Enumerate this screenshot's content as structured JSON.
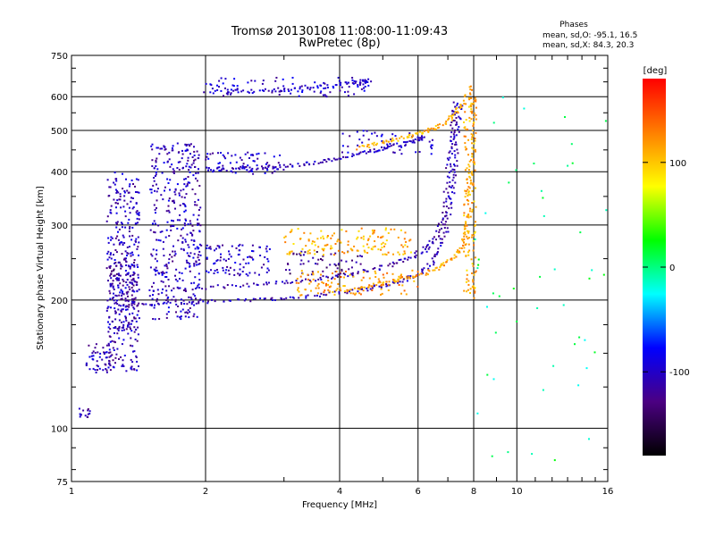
{
  "chart_data": {
    "type": "scatter",
    "title": "Tromsø 20130108 11:08:00-11:09:43",
    "subtitle": "RwPretec (8p)",
    "stats": {
      "heading": "Phases",
      "o_line": "mean, sd,O: -95.1, 16.5",
      "x_line": "mean, sd,X:  84.3, 20.3"
    },
    "xlabel": "Frequency [MHz]",
    "ylabel": "Stationary phase Virtual Height [km]",
    "x_scale": "log",
    "y_scale": "log",
    "xlim": [
      1,
      16
    ],
    "ylim": [
      75,
      750
    ],
    "x_ticks": [
      1,
      2,
      4,
      6,
      8,
      10,
      16
    ],
    "x_tick_labels": [
      "1",
      "2",
      "4",
      "6",
      "8",
      "10",
      "16"
    ],
    "y_ticks": [
      75,
      100,
      200,
      300,
      400,
      500,
      600,
      750
    ],
    "y_tick_labels": [
      "75",
      "100",
      "200",
      "300",
      "400",
      "500",
      "600",
      "750"
    ],
    "grid": true,
    "colorbar": {
      "label": "[deg]",
      "range": [
        -180,
        180
      ],
      "ticks": [
        100,
        0,
        -100
      ],
      "tick_labels": [
        "100",
        "0",
        "-100"
      ],
      "colors": [
        "#000000",
        "#4b0082",
        "#0000ff",
        "#00ffff",
        "#00ff00",
        "#ffff00",
        "#ff7f00",
        "#ff0000"
      ]
    },
    "series": [
      {
        "freq_range": [
          1.03,
          1.1
        ],
        "height_range": [
          105,
          112
        ],
        "phase": -110,
        "count": 14
      },
      {
        "freq_range": [
          1.08,
          1.25
        ],
        "height_range": [
          135,
          158
        ],
        "phase": -108,
        "count": 50
      },
      {
        "freq_range": [
          1.2,
          1.42
        ],
        "height_range": [
          135,
          400
        ],
        "phase": -105,
        "count": 320
      },
      {
        "freq_range": [
          1.22,
          1.42
        ],
        "height_range": [
          170,
          250
        ],
        "phase": -115,
        "count": 120
      },
      {
        "freq_range": [
          1.5,
          1.95
        ],
        "height_range": [
          180,
          470
        ],
        "phase": -105,
        "count": 380
      },
      {
        "freq_range": [
          1.8,
          2.8
        ],
        "height_range": [
          228,
          270
        ],
        "phase": -100,
        "count": 110
      },
      {
        "freq_range": [
          2.0,
          3.0
        ],
        "height_range": [
          395,
          445
        ],
        "phase": -100,
        "count": 80
      },
      {
        "freq_range": [
          2.0,
          4.7
        ],
        "height_range": [
          600,
          665
        ],
        "phase": -100,
        "count": 90
      },
      {
        "freq_range": [
          3.0,
          4.5
        ],
        "height_range": [
          225,
          260
        ],
        "phase": -125,
        "count": 60
      },
      {
        "freq_range": [
          3.0,
          5.8
        ],
        "height_range": [
          255,
          295
        ],
        "phase": 110,
        "count": 140
      },
      {
        "freq_range": [
          3.2,
          6.0
        ],
        "height_range": [
          205,
          235
        ],
        "phase": 120,
        "count": 110
      },
      {
        "freq_range": [
          4.0,
          6.6
        ],
        "height_range": [
          440,
          500
        ],
        "phase": -100,
        "count": 50
      },
      {
        "freq_range": [
          7.6,
          8.1
        ],
        "height_range": [
          200,
          620
        ],
        "phase": 110,
        "count": 140
      },
      {
        "freq_range": [
          8.0,
          16
        ],
        "height_range": [
          80,
          650
        ],
        "phase": 0,
        "count": 50
      }
    ],
    "traces": [
      {
        "points": [
          [
            1.2,
            192
          ],
          [
            1.5,
            196
          ],
          [
            2.0,
            198
          ],
          [
            2.6,
            200
          ],
          [
            3.2,
            203
          ],
          [
            4.0,
            208
          ],
          [
            4.8,
            214
          ],
          [
            5.6,
            222
          ],
          [
            6.2,
            234
          ],
          [
            6.7,
            258
          ],
          [
            7.0,
            300
          ],
          [
            7.15,
            360
          ],
          [
            7.25,
            420
          ],
          [
            7.35,
            500
          ],
          [
            7.45,
            580
          ]
        ],
        "phase": -105
      },
      {
        "points": [
          [
            1.5,
            209
          ],
          [
            2.0,
            214
          ],
          [
            2.6,
            217
          ],
          [
            3.2,
            221
          ],
          [
            4.0,
            228
          ],
          [
            4.8,
            236
          ],
          [
            5.6,
            248
          ],
          [
            6.2,
            262
          ],
          [
            6.6,
            282
          ],
          [
            6.85,
            320
          ],
          [
            7.0,
            380
          ],
          [
            7.1,
            450
          ],
          [
            7.2,
            520
          ],
          [
            7.3,
            590
          ]
        ],
        "phase": -110
      },
      {
        "points": [
          [
            3.8,
            210
          ],
          [
            4.5,
            214
          ],
          [
            5.2,
            220
          ],
          [
            6.0,
            228
          ],
          [
            6.7,
            238
          ],
          [
            7.2,
            252
          ],
          [
            7.6,
            270
          ],
          [
            7.8,
            310
          ],
          [
            7.9,
            380
          ],
          [
            8.0,
            470
          ],
          [
            8.0,
            560
          ],
          [
            7.95,
            640
          ]
        ],
        "phase": 115
      },
      {
        "points": [
          [
            2.0,
            405
          ],
          [
            2.5,
            407
          ],
          [
            3.0,
            412
          ],
          [
            3.5,
            420
          ],
          [
            4.0,
            430
          ],
          [
            4.6,
            445
          ],
          [
            5.2,
            458
          ],
          [
            5.8,
            470
          ],
          [
            6.2,
            482
          ]
        ],
        "phase": -105
      },
      {
        "points": [
          [
            4.4,
            455
          ],
          [
            5.0,
            468
          ],
          [
            5.6,
            482
          ],
          [
            6.2,
            495
          ],
          [
            6.7,
            510
          ],
          [
            7.2,
            540
          ],
          [
            7.6,
            580
          ]
        ],
        "phase": 110
      },
      {
        "points": [
          [
            2.0,
            615
          ],
          [
            2.6,
            618
          ],
          [
            3.2,
            625
          ],
          [
            3.8,
            635
          ],
          [
            4.4,
            650
          ],
          [
            4.7,
            655
          ]
        ],
        "phase": -100
      }
    ]
  }
}
